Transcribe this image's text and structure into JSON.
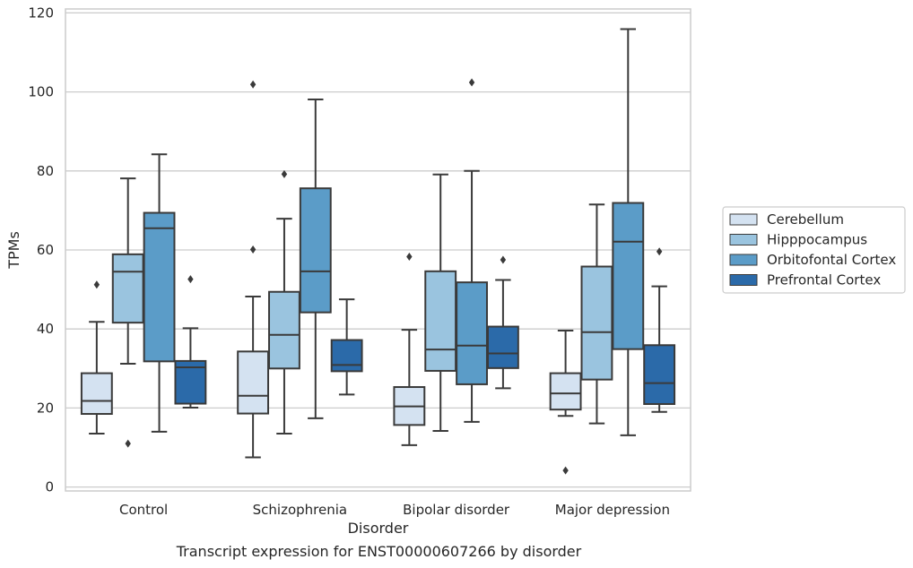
{
  "caption": "Transcript expression for ENST00000607266 by disorder",
  "chart_data": {
    "type": "box",
    "xlabel": "Disorder",
    "ylabel": "TPMs",
    "ylim": [
      -1,
      121
    ],
    "yticks": [
      0,
      20,
      40,
      60,
      80,
      100,
      120
    ],
    "grid": "horizontal",
    "legend_position": "right",
    "categories": [
      "Control",
      "Schizophrenia",
      "Bipolar disorder",
      "Major depression"
    ],
    "series": [
      {
        "name": "Cerebellum",
        "color": "#d4e2f1",
        "boxes": [
          {
            "whisker_low": 13.5,
            "q1": 18.5,
            "median": 21.8,
            "q3": 28.8,
            "whisker_high": 41.8,
            "outliers": [
              51.2
            ]
          },
          {
            "whisker_low": 7.5,
            "q1": 18.6,
            "median": 23.1,
            "q3": 34.3,
            "whisker_high": 48.2,
            "outliers": [
              101.9,
              60.1
            ]
          },
          {
            "whisker_low": 10.6,
            "q1": 15.7,
            "median": 20.4,
            "q3": 25.3,
            "whisker_high": 39.8,
            "outliers": [
              58.3
            ]
          },
          {
            "whisker_low": 18.0,
            "q1": 19.6,
            "median": 23.7,
            "q3": 28.8,
            "whisker_high": 39.6,
            "outliers": [
              4.2
            ]
          }
        ]
      },
      {
        "name": "Hipppocampus",
        "color": "#9ac4df",
        "boxes": [
          {
            "whisker_low": 31.2,
            "q1": 41.6,
            "median": 54.5,
            "q3": 58.9,
            "whisker_high": 78.1,
            "outliers": [
              11.0
            ]
          },
          {
            "whisker_low": 13.5,
            "q1": 30.0,
            "median": 38.5,
            "q3": 49.4,
            "whisker_high": 67.9,
            "outliers": [
              79.2
            ]
          },
          {
            "whisker_low": 14.2,
            "q1": 29.4,
            "median": 34.8,
            "q3": 54.6,
            "whisker_high": 79.1,
            "outliers": []
          },
          {
            "whisker_low": 16.1,
            "q1": 27.2,
            "median": 39.2,
            "q3": 55.8,
            "whisker_high": 71.5,
            "outliers": []
          }
        ]
      },
      {
        "name": "Orbitofontal Cortex",
        "color": "#5b9cc8",
        "boxes": [
          {
            "whisker_low": 14.0,
            "q1": 31.8,
            "median": 65.5,
            "q3": 69.4,
            "whisker_high": 84.2,
            "outliers": []
          },
          {
            "whisker_low": 17.4,
            "q1": 44.2,
            "median": 54.6,
            "q3": 75.6,
            "whisker_high": 98.1,
            "outliers": []
          },
          {
            "whisker_low": 16.5,
            "q1": 26.0,
            "median": 35.8,
            "q3": 51.8,
            "whisker_high": 80.0,
            "outliers": [
              102.4
            ]
          },
          {
            "whisker_low": 13.1,
            "q1": 34.9,
            "median": 62.1,
            "q3": 71.9,
            "whisker_high": 115.9,
            "outliers": []
          }
        ]
      },
      {
        "name": "Prefrontal Cortex",
        "color": "#2b6aa9",
        "boxes": [
          {
            "whisker_low": 20.1,
            "q1": 21.1,
            "median": 30.3,
            "q3": 31.9,
            "whisker_high": 40.2,
            "outliers": [
              52.6
            ]
          },
          {
            "whisker_low": 23.4,
            "q1": 29.3,
            "median": 30.9,
            "q3": 37.2,
            "whisker_high": 47.5,
            "outliers": []
          },
          {
            "whisker_low": 25.0,
            "q1": 30.1,
            "median": 33.8,
            "q3": 40.6,
            "whisker_high": 52.4,
            "outliers": [
              57.5
            ]
          },
          {
            "whisker_low": 19.0,
            "q1": 21.0,
            "median": 26.3,
            "q3": 35.9,
            "whisker_high": 50.8,
            "outliers": [
              59.6
            ]
          }
        ]
      }
    ]
  }
}
